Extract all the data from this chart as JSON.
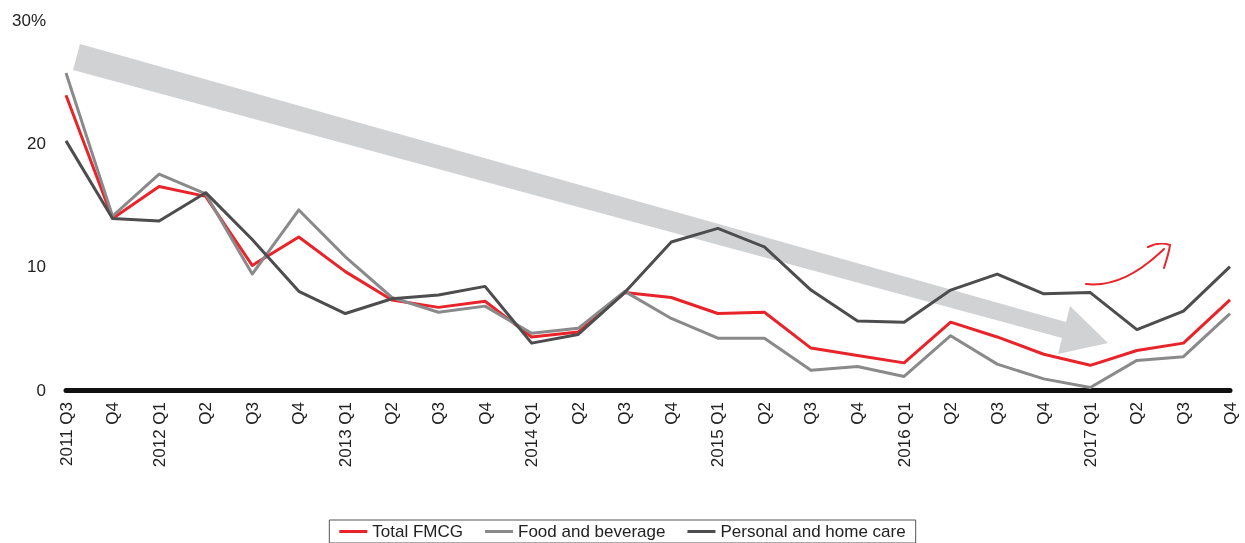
{
  "chart_data": {
    "type": "line",
    "categories": [
      "2011 Q3",
      "Q4",
      "2012 Q1",
      "Q2",
      "Q3",
      "Q4",
      "2013 Q1",
      "Q2",
      "Q3",
      "Q4",
      "2014 Q1",
      "Q2",
      "Q3",
      "Q4",
      "2015 Q1",
      "Q2",
      "Q3",
      "Q4",
      "2016 Q1",
      "Q2",
      "Q3",
      "Q4",
      "2017 Q1",
      "Q2",
      "Q3",
      "Q4"
    ],
    "series": [
      {
        "name": "Total FMCG",
        "color": "#e8242a",
        "values": [
          23.9,
          13.9,
          16.5,
          15.7,
          10.1,
          12.4,
          9.6,
          7.3,
          6.7,
          7.2,
          4.3,
          4.7,
          7.9,
          7.5,
          6.2,
          6.3,
          3.4,
          2.8,
          2.2,
          5.5,
          4.3,
          2.9,
          2.0,
          3.2,
          3.8,
          7.3
        ]
      },
      {
        "name": "Food and beverage",
        "color": "#8a8a8c",
        "values": [
          25.7,
          14.1,
          17.5,
          15.9,
          9.4,
          14.6,
          10.8,
          7.5,
          6.3,
          6.8,
          4.6,
          5.0,
          8.0,
          5.8,
          4.2,
          4.2,
          1.6,
          1.9,
          1.1,
          4.4,
          2.1,
          0.9,
          0.2,
          2.4,
          2.7,
          6.2
        ]
      },
      {
        "name": "Personal and home care",
        "color": "#4d4d4f",
        "values": [
          20.2,
          13.9,
          13.7,
          16.0,
          12.2,
          8.0,
          6.2,
          7.4,
          7.7,
          8.4,
          3.8,
          4.5,
          7.9,
          12.0,
          13.1,
          11.6,
          8.1,
          5.6,
          5.5,
          8.1,
          9.4,
          7.8,
          7.9,
          4.9,
          6.4,
          10.0
        ]
      }
    ],
    "ylim": [
      0,
      30
    ],
    "yticks": [
      0,
      10,
      20,
      {
        "value": 30,
        "label": "30%"
      }
    ],
    "grid": false,
    "legend": "bottom",
    "marker": "none",
    "line_style": "solid"
  }
}
